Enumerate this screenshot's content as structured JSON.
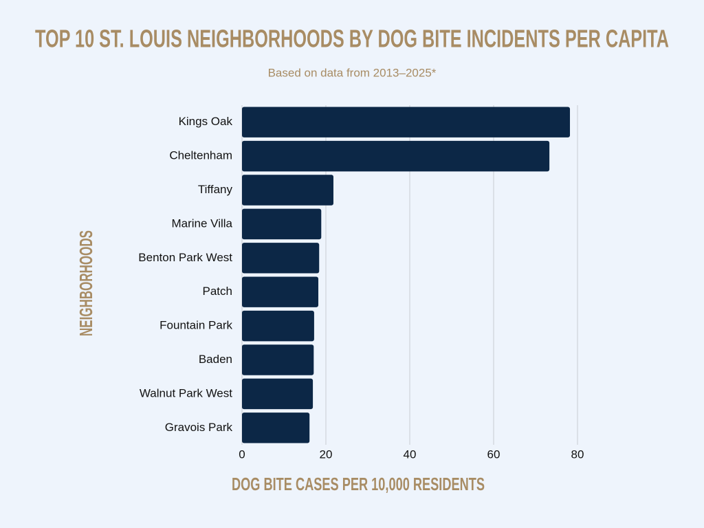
{
  "chart_data": {
    "type": "barh",
    "title": "TOP 10 ST. LOUIS NEIGHBORHOODS BY DOG BITE INCIDENTS PER CAPITA",
    "subtitle": "Based on data from 2013–2025*",
    "x_label": "DOG BITE CASES PER 10,000 RESIDENTS",
    "y_label": "NEIGHBORHOODS",
    "categories": [
      "Kings Oak",
      "Cheltenham",
      "Tiffany",
      "Marine Villa",
      "Benton Park West",
      "Patch",
      "Fountain Park",
      "Baden",
      "Walnut Park West",
      "Gravois Park"
    ],
    "values": [
      78.2,
      73.3,
      21.8,
      18.9,
      18.4,
      18.2,
      17.2,
      17.1,
      16.9,
      16.1
    ],
    "color": "#0c2746",
    "xlim": [
      0,
      80
    ],
    "xticks": [
      0,
      20,
      40,
      60,
      80
    ],
    "grid": true
  }
}
